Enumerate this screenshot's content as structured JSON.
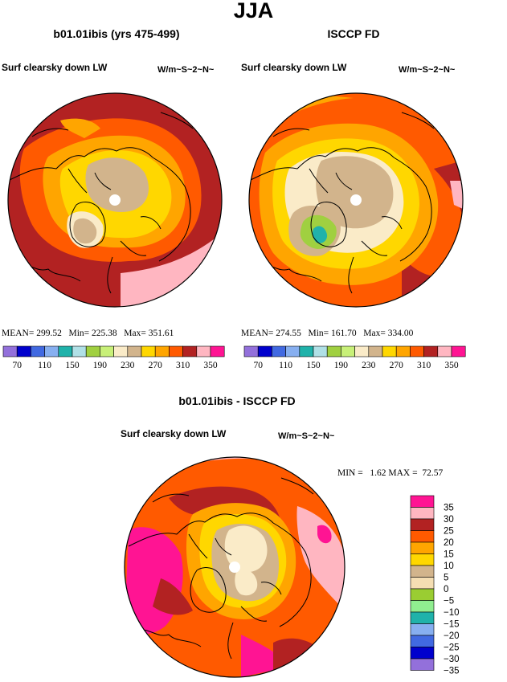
{
  "page": {
    "title": "JJA"
  },
  "colors": {
    "palette": [
      "#9370db",
      "#0000cd",
      "#4169e1",
      "#87aff0",
      "#20b2aa",
      "#b0e0e6",
      "#a0d040",
      "#c8f078",
      "#faebc8",
      "#d2b48c",
      "#ffd700",
      "#ffa500",
      "#ff5a00",
      "#b22222",
      "#ffb6c1",
      "#ff1493"
    ],
    "abs_palette": [
      "#9370db",
      "#0000cd",
      "#4169e1",
      "#87aff0",
      "#20b2aa",
      "#90ee90",
      "#9acd32",
      "#f5deb3",
      "#d2b48c",
      "#ffd700",
      "#ffa500",
      "#ff5a00",
      "#b22222",
      "#ffb6c1",
      "#ff1493"
    ]
  },
  "chart_data": [
    {
      "type": "heatmap",
      "projection": "north polar stereographic",
      "title": "b01.01ibis (yrs 475-499)",
      "left_label": "Surf clearsky down LW",
      "units_label": "W/m~S~2~N~",
      "stats": {
        "mean_label": "MEAN=",
        "mean": "299.52",
        "min_label": "Min=",
        "min": "225.38",
        "max_label": "Max=",
        "max": "351.61"
      },
      "levels": [
        70,
        90,
        110,
        130,
        150,
        170,
        190,
        210,
        230,
        250,
        270,
        290,
        310,
        330,
        350
      ],
      "colorbar_labels": [
        "70",
        "110",
        "150",
        "190",
        "230",
        "270",
        "310",
        "350"
      ]
    },
    {
      "type": "heatmap",
      "projection": "north polar stereographic",
      "title": "ISCCP FD",
      "left_label": "Surf clearsky down LW",
      "units_label": "W/m~S~2~N~",
      "stats": {
        "mean_label": "MEAN=",
        "mean": "274.55",
        "min_label": "Min=",
        "min": "161.70",
        "max_label": "Max=",
        "max": "334.00"
      },
      "levels": [
        70,
        90,
        110,
        130,
        150,
        170,
        190,
        210,
        230,
        250,
        270,
        290,
        310,
        330,
        350
      ],
      "colorbar_labels": [
        "70",
        "110",
        "150",
        "190",
        "230",
        "270",
        "310",
        "350"
      ]
    },
    {
      "type": "heatmap",
      "projection": "north polar stereographic",
      "title": "b01.01ibis - ISCCP FD",
      "left_label": "Surf clearsky down LW",
      "units_label": "W/m~S~2~N~",
      "stats": {
        "min_label": "MIN =",
        "min": "1.62",
        "max_label": "MAX =",
        "max": "72.57"
      },
      "colorbar_labels": [
        "35",
        "30",
        "25",
        "20",
        "15",
        "10",
        "5",
        "0",
        "−5",
        "−10",
        "−15",
        "−20",
        "−25",
        "−30",
        "−35"
      ]
    }
  ]
}
